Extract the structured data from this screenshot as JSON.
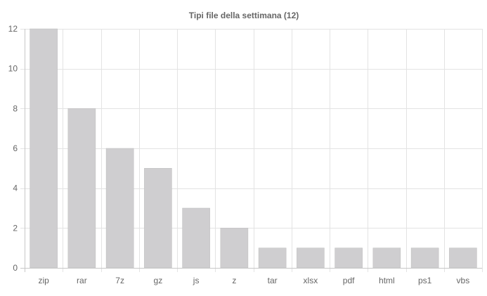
{
  "chart_data": {
    "type": "bar",
    "title": "Tipi file della settimana (12)",
    "xlabel": "",
    "ylabel": "",
    "categories": [
      "zip",
      "rar",
      "7z",
      "gz",
      "js",
      "z",
      "tar",
      "xlsx",
      "pdf",
      "html",
      "ps1",
      "vbs"
    ],
    "values": [
      12,
      8,
      6,
      5,
      3,
      2,
      1,
      1,
      1,
      1,
      1,
      1
    ],
    "ylim": [
      0,
      12
    ],
    "yticks": [
      0,
      2,
      4,
      6,
      8,
      10,
      12
    ],
    "grid": true,
    "legend": "none",
    "colors": {
      "bar_fill": "#cfced0",
      "bar_stroke": "#bdbdbd"
    }
  }
}
